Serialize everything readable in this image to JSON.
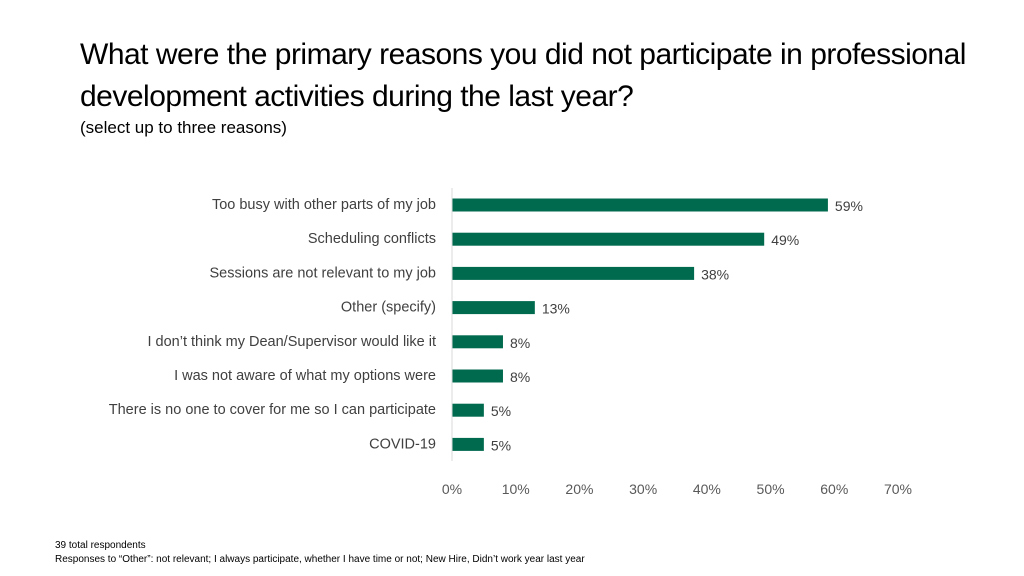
{
  "slide": {
    "title": "What were the primary reasons you did not participate in professional development activities during the last year?",
    "subtitle": "(select up to three reasons)"
  },
  "chart_data": {
    "type": "bar",
    "orientation": "horizontal",
    "categories": [
      "Too busy with other parts of my job",
      "Scheduling conflicts",
      "Sessions are not relevant to my job",
      "Other (specify)",
      "I don’t think my Dean/Supervisor would like it",
      "I was not aware of what my options were",
      "There is no one to cover for me so I can participate",
      "COVID-19"
    ],
    "values": [
      59,
      49,
      38,
      13,
      8,
      8,
      5,
      5
    ],
    "data_labels": [
      "59%",
      "49%",
      "38%",
      "13%",
      "8%",
      "8%",
      "5%",
      "5%"
    ],
    "xlim": [
      0,
      70
    ],
    "x_ticks": [
      0,
      10,
      20,
      30,
      40,
      50,
      60,
      70
    ],
    "x_tick_labels": [
      "0%",
      "10%",
      "20%",
      "30%",
      "40%",
      "50%",
      "60%",
      "70%"
    ],
    "grid": false,
    "legend": "none",
    "bar_color": "#006A4E"
  },
  "footnotes": {
    "respondents": "39 total respondents",
    "other_responses": "Responses to “Other”:  not relevant; I always participate, whether I have time or not; New Hire, Didn’t work year last year"
  }
}
